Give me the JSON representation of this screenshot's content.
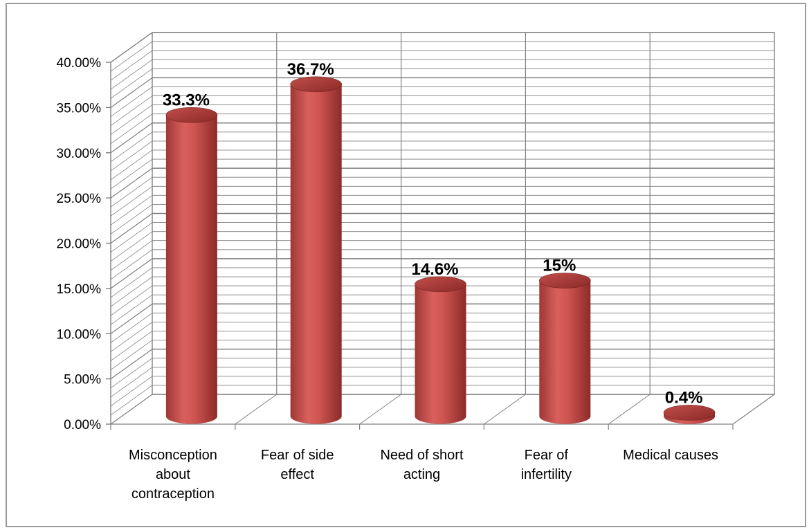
{
  "chart_data": {
    "type": "bar",
    "style": "3d-cylinder",
    "categories": [
      "Misconception about contraception",
      "Fear of side effect",
      "Need of short acting",
      "Fear of infertility",
      "Medical causes"
    ],
    "category_lines": [
      [
        "Misconception",
        "about",
        "contraception"
      ],
      [
        "Fear of side",
        "effect"
      ],
      [
        "Need of short",
        "acting"
      ],
      [
        "Fear of",
        "infertility"
      ],
      [
        "Medical causes"
      ]
    ],
    "values": [
      33.3,
      36.7,
      14.6,
      15,
      0.4
    ],
    "data_labels": [
      "33.3%",
      "36.7%",
      "14.6%",
      "15%",
      "0.4%"
    ],
    "y_ticks": [
      "0.00%",
      "5.00%",
      "10.00%",
      "15.00%",
      "20.00%",
      "25.00%",
      "30.00%",
      "35.00%",
      "40.00%"
    ],
    "ylim": [
      0,
      40
    ],
    "grid": true,
    "colors": {
      "bar": "#c0504d",
      "bar_dark": "#8c2b29",
      "bar_light": "#e07a77",
      "grid": "#7f7f7f"
    },
    "title": "",
    "xlabel": "",
    "ylabel": ""
  }
}
